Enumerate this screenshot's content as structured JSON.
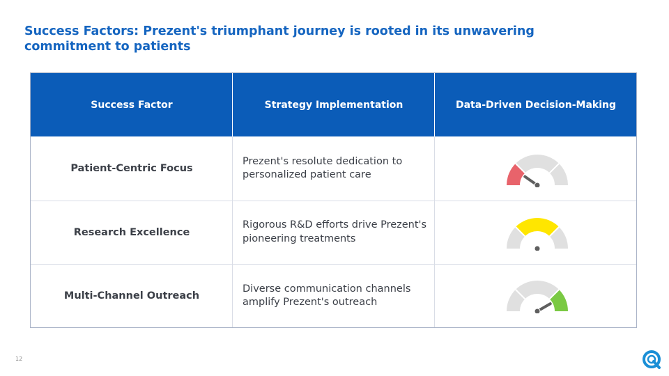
{
  "title": "Success Factors: Prezent's triumphant journey is rooted in its unwavering commitment to patients",
  "columns": [
    "Success Factor",
    "Strategy Implementation",
    "Data-Driven Decision-Making"
  ],
  "rows": [
    {
      "factor": "Patient-Centric Focus",
      "strategy": "Prezent's resolute dedication to personalized patient care",
      "gauge_level": "low",
      "gauge_color": "#e8636b"
    },
    {
      "factor": "Research Excellence",
      "strategy": "Rigorous R&D efforts drive Prezent's pioneering treatments",
      "gauge_level": "medium",
      "gauge_color": "#ffe600"
    },
    {
      "factor": "Multi-Channel Outreach",
      "strategy": "Diverse communication channels amplify Prezent's outreach",
      "gauge_level": "high",
      "gauge_color": "#7ac943"
    }
  ],
  "page_number": "12",
  "colors": {
    "title": "#1565c0",
    "header_bg": "#0b5cb8",
    "gauge_track": "#e0e0e0"
  },
  "icons": {
    "logo": "prezent-logo-icon",
    "gauge": "speedometer-gauge-icon"
  }
}
